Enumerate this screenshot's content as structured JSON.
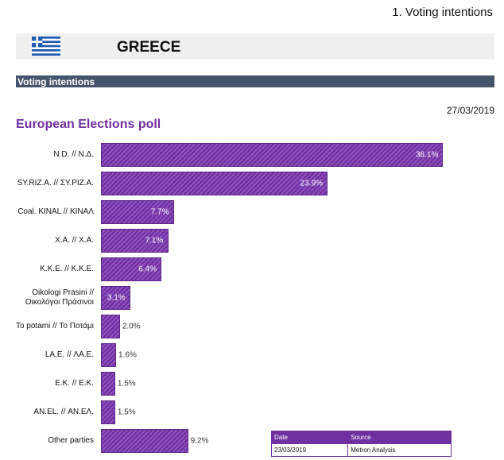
{
  "header": {
    "section": "1. Voting intentions",
    "country": "GREECE",
    "band": "Voting intentions",
    "date": "27/03/2019"
  },
  "chart_data": {
    "type": "bar",
    "orientation": "horizontal",
    "title": "European Elections poll",
    "categories": [
      "N.D. // Ν.Δ.",
      "SY.RIZ.A. // ΣΥ.ΡΙΖ.Α.",
      "Coal. KINAL // ΚΙΝΑΛ",
      "X.A. // Χ.Α.",
      "K.K.E. // Κ.Κ.Ε.",
      "Oikologi Prasini // Οικολόγοι Πράσινοι",
      "To potami // Το Ποτάμι",
      "LA.E. // ΛΑ.Ε.",
      "E.K. // Ε.Κ.",
      "AN.EL. // ΑΝ.ΕΛ.",
      "Other parties"
    ],
    "values": [
      36.1,
      23.9,
      7.7,
      7.1,
      6.4,
      3.1,
      2.0,
      1.6,
      1.5,
      1.5,
      9.2
    ],
    "value_labels": [
      "36.1%",
      "23.9%",
      "7.7%",
      "7.1%",
      "6.4%",
      "3.1%",
      "2.0%",
      "1.6%",
      "1.5%",
      "1.5%",
      "9.2%"
    ],
    "color": "#7030a0"
  },
  "source_table": {
    "columns": [
      "Date",
      "Source"
    ],
    "rows": [
      [
        "23/03/2019",
        "Metron Analysis"
      ]
    ]
  }
}
